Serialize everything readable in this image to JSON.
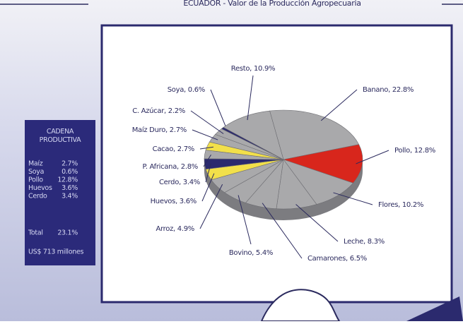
{
  "chart_data": {
    "type": "pie",
    "title": "ECUADOR - Valor de la Producción Agropecuaria",
    "values": [
      22.8,
      12.8,
      10.2,
      8.3,
      6.5,
      5.4,
      4.9,
      3.6,
      3.4,
      2.8,
      2.7,
      2.7,
      2.2,
      0.6,
      10.9
    ],
    "value_labels": [
      "Banano, 22.8%",
      "Pollo, 12.8%",
      "Flores, 10.2%",
      "Leche, 8.3%",
      "Camarones, 6.5%",
      "Bovino, 5.4%",
      "Arroz, 4.9%",
      "Huevos, 3.6%",
      "Cerdo, 3.4%",
      "P. Africana, 2.8%",
      "Cacao, 2.7%",
      "Maíz Duro, 2.7%",
      "C. Azúcar, 2.2%",
      "Soya, 0.6%",
      "Resto, 10.9%"
    ],
    "colors": [
      "#a9a9ab",
      "#d8261c",
      "#a9a9ab",
      "#a9a9ab",
      "#a9a9ab",
      "#a9a9ab",
      "#a9a9ab",
      "#f2e04a",
      "#2b2a6e",
      "#a9a9ab",
      "#f2e04a",
      "#a9a9ab",
      "#a9a9ab",
      "#2b2a6e",
      "#a9a9ab"
    ]
  },
  "side_box": {
    "title": "CADENA PRODUCTIVA",
    "rows": [
      [
        "Maíz",
        "2.7%"
      ],
      [
        "Soya",
        "0.6%"
      ],
      [
        "Pollo",
        "12.8%"
      ],
      [
        "Huevos",
        "3.6%"
      ],
      [
        "Cerdo",
        "3.4%"
      ]
    ],
    "total": [
      "Total",
      "23.1%"
    ],
    "footer": "US$ 713 millones"
  }
}
